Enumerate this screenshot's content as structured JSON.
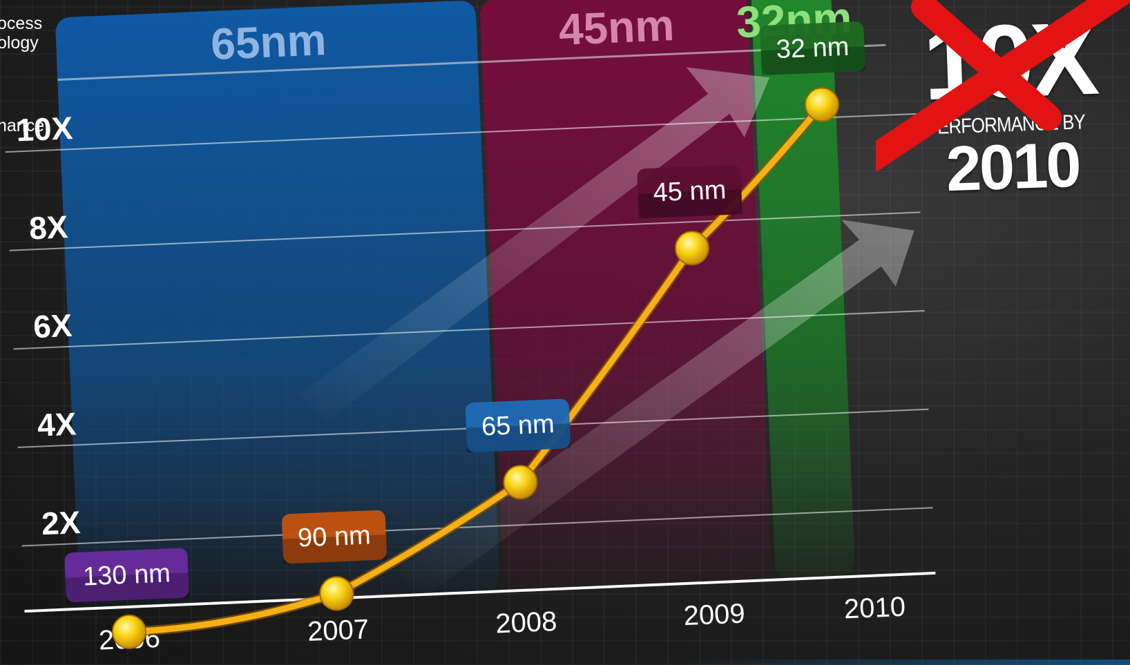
{
  "header": {
    "process_caption": "ocess",
    "technology_caption": "ology",
    "performance_caption": "nance",
    "headline_big": "10X",
    "headline_sub": "ERFORMANCE BY",
    "headline_year": "2010"
  },
  "colors": {
    "band_65nm": "#0d5aa3",
    "band_45nm": "#8a1048",
    "band_32nm": "#1e8f2a",
    "line": "#f5b016",
    "marker": "#f7d312",
    "cross": "#e11414",
    "tag_130nm": "#6a2ba0",
    "tag_90nm": "#c4520f",
    "tag_65nm": "#1f6bb6",
    "tag_45nm": "#5c1030",
    "tag_32nm": "#1d6b22"
  },
  "chart_data": {
    "type": "line",
    "title": "",
    "xlabel": "",
    "ylabel": "",
    "categories": [
      "2006",
      "2007",
      "2008",
      "2009",
      "2010"
    ],
    "yticks": [
      "2X",
      "4X",
      "6X",
      "8X",
      "10X"
    ],
    "ylim": [
      0,
      11
    ],
    "grid": true,
    "bands": [
      {
        "label": "65nm",
        "from": 2006,
        "to": 2008
      },
      {
        "label": "45nm",
        "from": 2008,
        "to": 2009.3
      },
      {
        "label": "32nm",
        "from": 2009.3,
        "to": 2010
      }
    ],
    "points": [
      {
        "x": 2006,
        "y": 0,
        "label": "130 nm"
      },
      {
        "x": 2007,
        "y": 0.6,
        "label": "90 nm"
      },
      {
        "x": 2008,
        "y": 2.7,
        "label": "65 nm"
      },
      {
        "x": 2009,
        "y": 7.3,
        "label": "45 nm"
      },
      {
        "x": 2009.65,
        "y": 10.1,
        "label": "32 nm"
      }
    ]
  }
}
